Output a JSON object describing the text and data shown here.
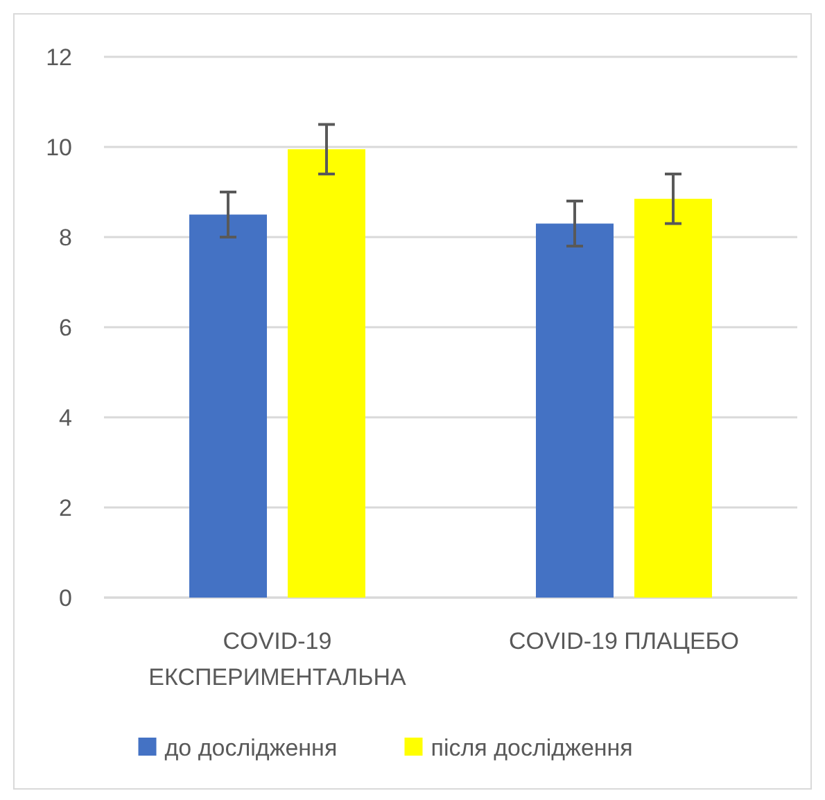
{
  "chart_data": {
    "type": "bar",
    "categories": [
      "COVID-19 ЕКСПЕРИМЕНТАЛЬНА",
      "COVID-19 ПЛАЦЕБО"
    ],
    "series": [
      {
        "name": "до дослідження",
        "color": "#4472c4",
        "values": [
          8.5,
          8.3
        ],
        "errors": [
          0.5,
          0.5
        ]
      },
      {
        "name": "після дослідження",
        "color": "#ffff00",
        "values": [
          9.95,
          8.85
        ],
        "errors": [
          0.55,
          0.55
        ]
      }
    ],
    "ylim": [
      0,
      12
    ],
    "yticks": [
      0,
      2,
      4,
      6,
      8,
      10,
      12
    ],
    "grid": "y",
    "legend": "bottom"
  }
}
